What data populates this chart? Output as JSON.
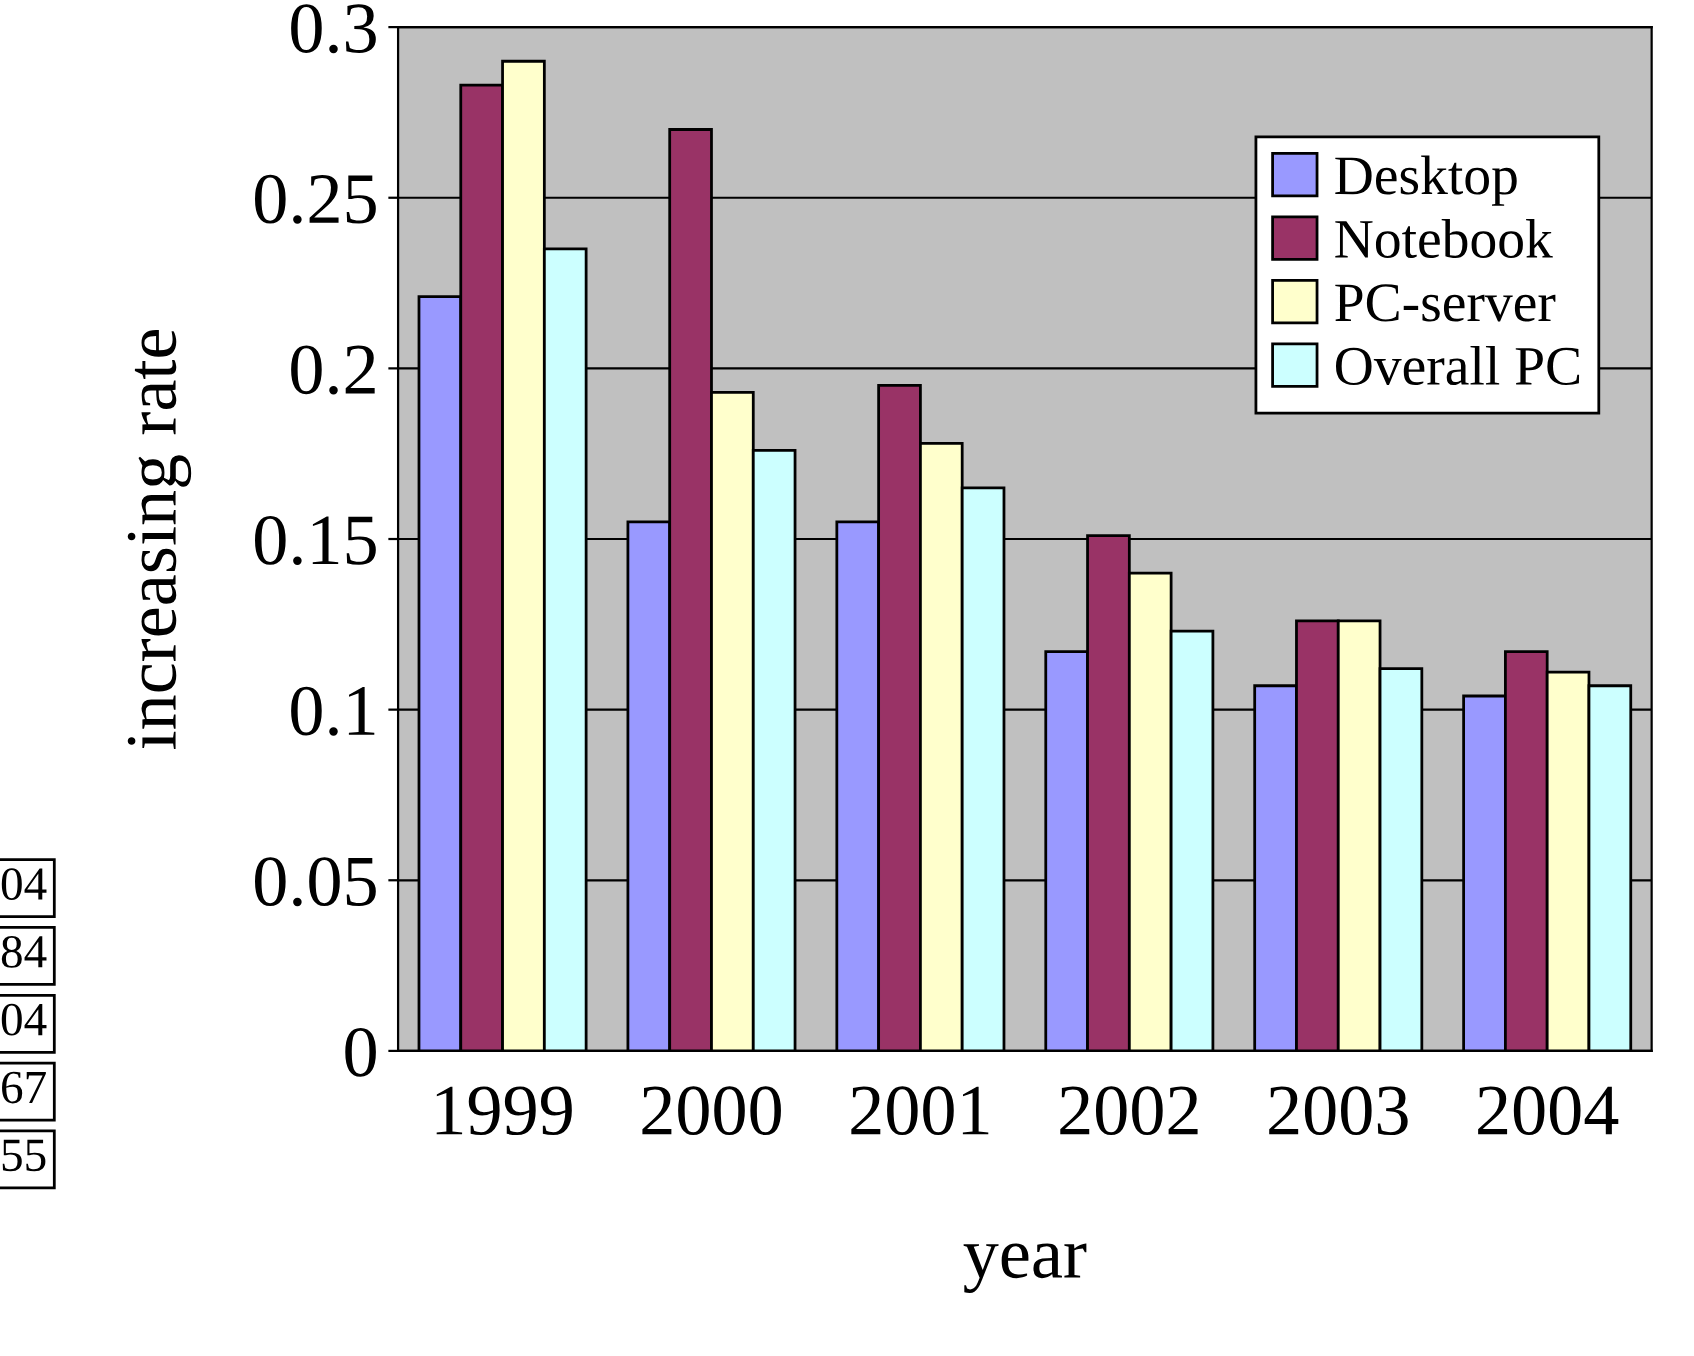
{
  "chart_data": {
    "type": "bar",
    "xlabel": "year",
    "ylabel": "increasing rate",
    "categories": [
      "1999",
      "2000",
      "2001",
      "2002",
      "2003",
      "2004"
    ],
    "series": [
      {
        "name": "Desktop",
        "color": "#9999ff",
        "values": [
          0.221,
          0.155,
          0.155,
          0.117,
          0.107,
          0.104
        ]
      },
      {
        "name": "Notebook",
        "color": "#993366",
        "values": [
          0.283,
          0.27,
          0.195,
          0.151,
          0.126,
          0.117
        ]
      },
      {
        "name": "PC-server",
        "color": "#ffffcc",
        "values": [
          0.29,
          0.193,
          0.178,
          0.14,
          0.126,
          0.111
        ]
      },
      {
        "name": "Overall PC",
        "color": "#ccffff",
        "values": [
          0.235,
          0.176,
          0.165,
          0.123,
          0.112,
          0.107
        ]
      }
    ],
    "ylim": [
      0,
      0.3
    ],
    "yticks": [
      0,
      0.05,
      0.1,
      0.15,
      0.2,
      0.25,
      0.3
    ],
    "grid": "y",
    "legend": "top right",
    "annotations": [
      "04",
      "84",
      "04",
      "67",
      "55"
    ]
  }
}
